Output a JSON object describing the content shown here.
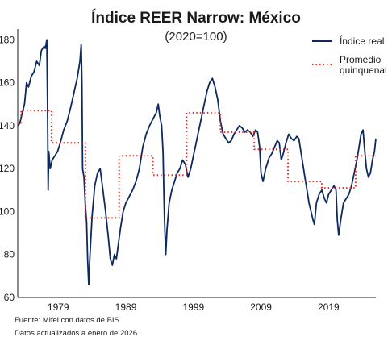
{
  "chart_data": {
    "type": "line",
    "title": "Índice REER Narrow: México",
    "subtitle": "(2020=100)",
    "x_range": [
      1973.0,
      2026.0
    ],
    "ylim": [
      60,
      185
    ],
    "y_ticks": [
      60,
      80,
      100,
      120,
      140,
      160,
      180
    ],
    "x_ticks": [
      1979,
      1989,
      1999,
      2009,
      2019
    ],
    "legend_position": "top-right",
    "series": [
      {
        "name": "Índice real",
        "color": "#0d2a5c",
        "style": "solid",
        "points": [
          [
            1973.0,
            140
          ],
          [
            1973.3,
            141
          ],
          [
            1973.6,
            145
          ],
          [
            1974.0,
            150
          ],
          [
            1974.3,
            160
          ],
          [
            1974.6,
            158
          ],
          [
            1975.0,
            163
          ],
          [
            1975.4,
            165
          ],
          [
            1975.8,
            170
          ],
          [
            1976.2,
            168
          ],
          [
            1976.5,
            175
          ],
          [
            1976.9,
            177
          ],
          [
            1977.1,
            176
          ],
          [
            1977.3,
            180
          ],
          [
            1977.4,
            150
          ],
          [
            1977.5,
            110
          ],
          [
            1977.6,
            128
          ],
          [
            1977.8,
            120
          ],
          [
            1978.1,
            124
          ],
          [
            1978.5,
            126
          ],
          [
            1978.9,
            128
          ],
          [
            1979.3,
            132
          ],
          [
            1979.8,
            138
          ],
          [
            1980.3,
            142
          ],
          [
            1980.8,
            148
          ],
          [
            1981.3,
            155
          ],
          [
            1981.8,
            162
          ],
          [
            1982.2,
            170
          ],
          [
            1982.4,
            178
          ],
          [
            1982.5,
            160
          ],
          [
            1982.6,
            120
          ],
          [
            1982.8,
            116
          ],
          [
            1983.0,
            103
          ],
          [
            1983.2,
            95
          ],
          [
            1983.35,
            77
          ],
          [
            1983.5,
            66
          ],
          [
            1983.7,
            80
          ],
          [
            1984.0,
            98
          ],
          [
            1984.4,
            112
          ],
          [
            1984.8,
            118
          ],
          [
            1985.2,
            120
          ],
          [
            1985.6,
            110
          ],
          [
            1986.0,
            100
          ],
          [
            1986.4,
            88
          ],
          [
            1986.7,
            78
          ],
          [
            1987.0,
            75
          ],
          [
            1987.3,
            80
          ],
          [
            1987.6,
            78
          ],
          [
            1987.9,
            85
          ],
          [
            1988.2,
            92
          ],
          [
            1988.6,
            100
          ],
          [
            1989.0,
            104
          ],
          [
            1989.5,
            107
          ],
          [
            1990.0,
            110
          ],
          [
            1990.5,
            114
          ],
          [
            1991.0,
            120
          ],
          [
            1991.5,
            130
          ],
          [
            1992.0,
            136
          ],
          [
            1992.5,
            140
          ],
          [
            1993.0,
            143
          ],
          [
            1993.5,
            146
          ],
          [
            1993.8,
            150
          ],
          [
            1994.0,
            145
          ],
          [
            1994.3,
            140
          ],
          [
            1994.5,
            128
          ],
          [
            1994.7,
            98
          ],
          [
            1994.9,
            80
          ],
          [
            1995.1,
            92
          ],
          [
            1995.4,
            104
          ],
          [
            1995.8,
            110
          ],
          [
            1996.2,
            114
          ],
          [
            1996.6,
            118
          ],
          [
            1997.0,
            120
          ],
          [
            1997.4,
            124
          ],
          [
            1997.8,
            122
          ],
          [
            1998.2,
            116
          ],
          [
            1998.6,
            120
          ],
          [
            1999.0,
            126
          ],
          [
            1999.4,
            132
          ],
          [
            1999.8,
            138
          ],
          [
            2000.2,
            144
          ],
          [
            2000.6,
            150
          ],
          [
            2001.0,
            156
          ],
          [
            2001.4,
            160
          ],
          [
            2001.8,
            162
          ],
          [
            2002.2,
            158
          ],
          [
            2002.6,
            152
          ],
          [
            2003.0,
            142
          ],
          [
            2003.4,
            136
          ],
          [
            2003.8,
            134
          ],
          [
            2004.2,
            132
          ],
          [
            2004.6,
            133
          ],
          [
            2005.0,
            136
          ],
          [
            2005.4,
            138
          ],
          [
            2005.8,
            140
          ],
          [
            2006.2,
            139
          ],
          [
            2006.6,
            137
          ],
          [
            2007.0,
            138
          ],
          [
            2007.4,
            137
          ],
          [
            2007.8,
            135
          ],
          [
            2008.2,
            138
          ],
          [
            2008.5,
            137
          ],
          [
            2008.8,
            130
          ],
          [
            2009.0,
            118
          ],
          [
            2009.3,
            114
          ],
          [
            2009.7,
            120
          ],
          [
            2010.2,
            125
          ],
          [
            2010.6,
            127
          ],
          [
            2011.0,
            130
          ],
          [
            2011.4,
            133
          ],
          [
            2011.7,
            132
          ],
          [
            2012.0,
            124
          ],
          [
            2012.3,
            127
          ],
          [
            2012.7,
            132
          ],
          [
            2013.1,
            136
          ],
          [
            2013.5,
            134
          ],
          [
            2013.9,
            133
          ],
          [
            2014.3,
            135
          ],
          [
            2014.6,
            134
          ],
          [
            2014.9,
            128
          ],
          [
            2015.2,
            122
          ],
          [
            2015.5,
            116
          ],
          [
            2015.8,
            110
          ],
          [
            2016.1,
            104
          ],
          [
            2016.4,
            100
          ],
          [
            2016.7,
            96
          ],
          [
            2016.9,
            94
          ],
          [
            2017.2,
            104
          ],
          [
            2017.6,
            108
          ],
          [
            2018.0,
            110
          ],
          [
            2018.4,
            106
          ],
          [
            2018.7,
            104
          ],
          [
            2019.0,
            108
          ],
          [
            2019.4,
            110
          ],
          [
            2019.8,
            112
          ],
          [
            2020.1,
            110
          ],
          [
            2020.3,
            96
          ],
          [
            2020.5,
            89
          ],
          [
            2020.8,
            96
          ],
          [
            2021.2,
            104
          ],
          [
            2021.6,
            106
          ],
          [
            2022.0,
            108
          ],
          [
            2022.4,
            112
          ],
          [
            2022.8,
            118
          ],
          [
            2023.2,
            124
          ],
          [
            2023.5,
            130
          ],
          [
            2023.8,
            136
          ],
          [
            2024.1,
            138
          ],
          [
            2024.3,
            130
          ],
          [
            2024.6,
            120
          ],
          [
            2024.9,
            116
          ],
          [
            2025.2,
            118
          ],
          [
            2025.5,
            124
          ],
          [
            2025.8,
            128
          ],
          [
            2026.0,
            134
          ]
        ]
      },
      {
        "name": "Promedio quinquenal",
        "color": "#e8281f",
        "style": "dotted",
        "points": [
          [
            1973.0,
            141
          ],
          [
            1973.5,
            141
          ],
          [
            1973.5,
            147
          ],
          [
            1978.0,
            147
          ],
          [
            1978.0,
            132
          ],
          [
            1983.0,
            132
          ],
          [
            1983.0,
            97
          ],
          [
            1988.0,
            97
          ],
          [
            1988.0,
            126
          ],
          [
            1993.0,
            126
          ],
          [
            1993.0,
            117
          ],
          [
            1998.0,
            117
          ],
          [
            1998.0,
            146
          ],
          [
            2003.0,
            146
          ],
          [
            2003.0,
            137
          ],
          [
            2008.0,
            137
          ],
          [
            2008.0,
            129
          ],
          [
            2013.0,
            129
          ],
          [
            2013.0,
            114
          ],
          [
            2018.0,
            114
          ],
          [
            2018.0,
            111
          ],
          [
            2023.0,
            111
          ],
          [
            2023.0,
            126
          ],
          [
            2026.0,
            126
          ]
        ]
      }
    ]
  },
  "footnotes": {
    "source": "Fuente: Mifel con datos de BIS",
    "updated": "Datos actualizados a enero de 2026"
  }
}
